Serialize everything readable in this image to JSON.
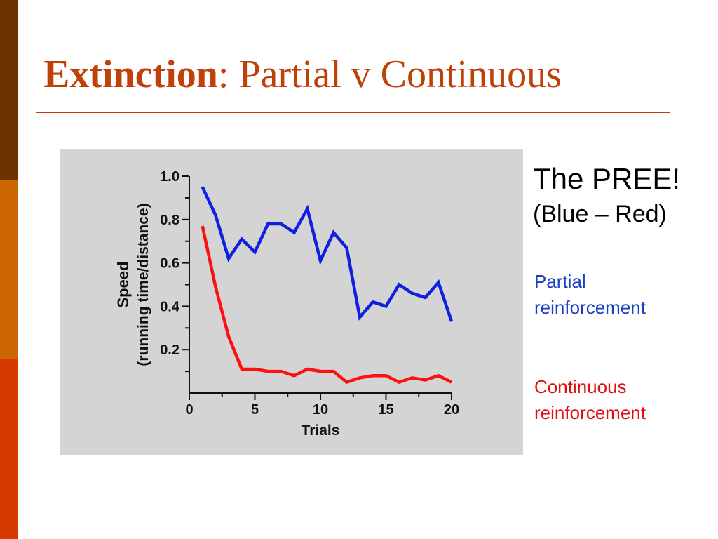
{
  "slide": {
    "title_bold": "Extinction",
    "title_rest": ": Partial v Continuous",
    "accent_color": "#c0400a",
    "band_colors": [
      "#6b3300",
      "#cc6600",
      "#d63a00"
    ]
  },
  "notes": {
    "heading": "The PREE!",
    "subheading": "(Blue – Red)",
    "partial_line1": "Partial",
    "partial_line2": "reinforcement",
    "continuous_line1": "Continuous",
    "continuous_line2": "reinforcement"
  },
  "chart_data": {
    "type": "line",
    "title": "",
    "xlabel": "Trials",
    "ylabel_line1": "Speed",
    "ylabel_line2": "(running time/distance)",
    "xlim": [
      0,
      20
    ],
    "ylim": [
      0,
      1.0
    ],
    "xticks": [
      0,
      5,
      10,
      15,
      20
    ],
    "yticks": [
      0.2,
      0.4,
      0.6,
      0.8,
      1.0
    ],
    "xtick_labels": [
      "0",
      "5",
      "10",
      "15",
      "20"
    ],
    "ytick_labels": [
      "0.2",
      "0.4",
      "0.6",
      "0.8",
      "1.0"
    ],
    "grid": false,
    "x": [
      1,
      2,
      3,
      4,
      5,
      6,
      7,
      8,
      9,
      10,
      11,
      12,
      13,
      14,
      15,
      16,
      17,
      18,
      19,
      20
    ],
    "series": [
      {
        "name": "Partial reinforcement",
        "color": "#1020e0",
        "values": [
          0.95,
          0.82,
          0.62,
          0.71,
          0.65,
          0.78,
          0.78,
          0.74,
          0.85,
          0.61,
          0.74,
          0.67,
          0.35,
          0.42,
          0.4,
          0.5,
          0.46,
          0.44,
          0.51,
          0.33
        ]
      },
      {
        "name": "Continuous reinforcement",
        "color": "#ff1010",
        "values": [
          0.77,
          0.49,
          0.26,
          0.11,
          0.11,
          0.1,
          0.1,
          0.08,
          0.11,
          0.1,
          0.1,
          0.05,
          0.07,
          0.08,
          0.08,
          0.05,
          0.07,
          0.06,
          0.08,
          0.05
        ]
      }
    ]
  }
}
